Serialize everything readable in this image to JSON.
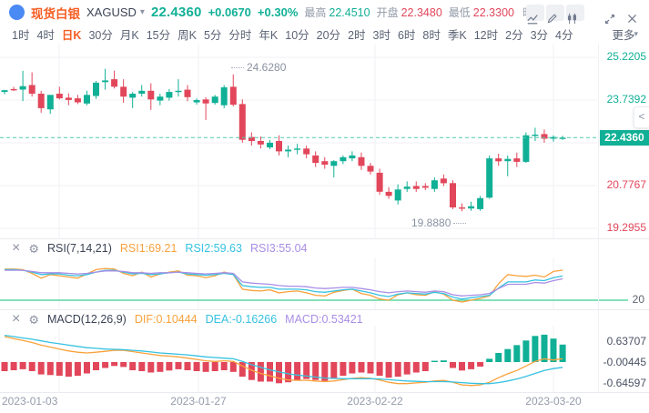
{
  "header": {
    "symbol_name": "现货白银",
    "symbol_code": "XAGUSD",
    "price": "22.4360",
    "change": "+0.0670",
    "change_pct": "+0.30%",
    "stats": [
      {
        "label": "最高",
        "value": "22.4510",
        "dir": "up"
      },
      {
        "label": "开盘",
        "value": "22.3480",
        "dir": "down"
      },
      {
        "label": "最低",
        "value": "22.3300",
        "dir": "down"
      }
    ],
    "obscured_fragment": "昨 2 6"
  },
  "tabs": {
    "items": [
      "1时",
      "4时",
      "日K",
      "30分",
      "月K",
      "15分",
      "周K",
      "5分",
      "分时",
      "年K",
      "10分",
      "20分",
      "2时",
      "3时",
      "6时",
      "8时",
      "季K",
      "12时",
      "2分",
      "3分",
      "4分"
    ],
    "active": "日K",
    "more_label": "更多"
  },
  "icons": {
    "gear": "⚙",
    "close": "×",
    "caret": "▾"
  },
  "main_chart": {
    "high_label": "24.6280",
    "low_label": "19.8880",
    "price_badge": "22.4360",
    "collapse_label": "<"
  },
  "rsi": {
    "title": "RSI(7,14,21)",
    "value_labels": [
      "RSI1:69.21",
      "RSI2:59.63",
      "RSI3:55.04"
    ],
    "axis_label": "20"
  },
  "macd": {
    "title": "MACD(12,26,9)",
    "value_labels": [
      "DIF:0.10444",
      "DEA:-0.16266",
      "MACD:0.53421"
    ]
  },
  "colors": {
    "up": "#10b096",
    "down": "#e2465a",
    "accent_orange": "#f65e23",
    "rsi1": "#f9a23c",
    "rsi2": "#36c2e0",
    "rsi3": "#a98ee6",
    "baseline_green": "#3bcf92",
    "dif": "#f9a23c",
    "dea": "#36c2e0",
    "grid": "#f1f2f6",
    "dashed_line": "#56c9ae",
    "text_gray": "#9299a8"
  },
  "chart_data": [
    {
      "type": "candlestick",
      "title": "现货白银 XAGUSD 日K",
      "x_ticks": [
        "2023-01-03",
        "2023-01-27",
        "2023-02-22",
        "2023-03-20"
      ],
      "y_ticks": [
        25.2205,
        23.7392,
        22.258,
        20.7767,
        19.2955
      ],
      "ylim": [
        19.0,
        25.5
      ],
      "current_price": 22.436,
      "high_annotation": 24.628,
      "low_annotation": 19.888,
      "candles_ohlc": [
        [
          24.02,
          24.1,
          23.94,
          24.08
        ],
        [
          24.12,
          24.2,
          24.05,
          24.08
        ],
        [
          24.1,
          24.75,
          23.7,
          24.22
        ],
        [
          24.26,
          24.7,
          23.86,
          23.96
        ],
        [
          23.96,
          24.06,
          23.3,
          23.46
        ],
        [
          23.42,
          23.72,
          23.26,
          23.92
        ],
        [
          23.96,
          24.2,
          23.76,
          23.8
        ],
        [
          23.82,
          23.97,
          23.56,
          23.74
        ],
        [
          23.8,
          23.92,
          23.6,
          23.66
        ],
        [
          23.62,
          24.06,
          23.56,
          23.92
        ],
        [
          23.88,
          24.4,
          23.78,
          24.34
        ],
        [
          24.36,
          24.82,
          24.1,
          24.42
        ],
        [
          24.46,
          24.76,
          24.14,
          24.2
        ],
        [
          24.2,
          24.46,
          23.64,
          23.86
        ],
        [
          23.82,
          24.02,
          23.46,
          23.96
        ],
        [
          23.96,
          24.26,
          23.86,
          24.06
        ],
        [
          24.06,
          24.32,
          23.4,
          23.76
        ],
        [
          23.72,
          23.96,
          23.56,
          23.86
        ],
        [
          23.82,
          24.12,
          23.72,
          24.02
        ],
        [
          24.02,
          24.46,
          23.86,
          24.06
        ],
        [
          24.1,
          24.26,
          23.7,
          23.84
        ],
        [
          23.66,
          23.8,
          23.58,
          23.74
        ],
        [
          23.76,
          23.84,
          23.05,
          23.62
        ],
        [
          23.64,
          23.92,
          23.58,
          23.86
        ],
        [
          23.56,
          24.26,
          23.46,
          24.18
        ],
        [
          24.2,
          24.628,
          23.52,
          23.58
        ],
        [
          23.6,
          23.76,
          22.26,
          22.36
        ],
        [
          22.46,
          22.62,
          22.16,
          22.32
        ],
        [
          22.32,
          22.48,
          22.06,
          22.2
        ],
        [
          22.1,
          22.36,
          22.04,
          22.26
        ],
        [
          22.32,
          22.52,
          21.82,
          21.96
        ],
        [
          21.96,
          22.16,
          21.76,
          22.02
        ],
        [
          22.02,
          22.22,
          21.86,
          22.06
        ],
        [
          22.06,
          22.16,
          21.72,
          21.86
        ],
        [
          21.82,
          21.96,
          21.42,
          21.56
        ],
        [
          21.62,
          21.76,
          21.36,
          21.5
        ],
        [
          21.46,
          21.66,
          21.06,
          21.62
        ],
        [
          21.62,
          21.82,
          21.52,
          21.76
        ],
        [
          21.72,
          21.96,
          21.62,
          21.82
        ],
        [
          21.76,
          21.92,
          21.32,
          21.46
        ],
        [
          21.46,
          21.56,
          21.16,
          21.26
        ],
        [
          21.22,
          21.36,
          20.46,
          20.56
        ],
        [
          20.56,
          20.72,
          20.32,
          20.42
        ],
        [
          20.26,
          20.82,
          20.12,
          20.64
        ],
        [
          20.66,
          20.92,
          20.56,
          20.74
        ],
        [
          20.76,
          20.92,
          20.56,
          20.66
        ],
        [
          20.76,
          20.86,
          20.62,
          20.7
        ],
        [
          20.66,
          21.06,
          20.56,
          20.96
        ],
        [
          21.02,
          21.16,
          20.76,
          20.86
        ],
        [
          20.86,
          20.96,
          19.96,
          20.02
        ],
        [
          20.02,
          20.16,
          19.888,
          19.98
        ],
        [
          19.98,
          20.22,
          19.9,
          20.06
        ],
        [
          19.96,
          20.42,
          19.9,
          20.34
        ],
        [
          20.36,
          21.82,
          20.32,
          21.72
        ],
        [
          21.72,
          21.88,
          21.46,
          21.62
        ],
        [
          21.62,
          21.82,
          21.1,
          21.7
        ],
        [
          21.72,
          21.92,
          21.42,
          21.6
        ],
        [
          21.6,
          22.62,
          21.56,
          22.52
        ],
        [
          22.52,
          22.78,
          22.32,
          22.54
        ],
        [
          22.56,
          22.72,
          22.26,
          22.4
        ],
        [
          22.4,
          22.52,
          22.3,
          22.46
        ],
        [
          22.42,
          22.5,
          22.36,
          22.436
        ]
      ]
    },
    {
      "type": "line",
      "title": "RSI(7,14,21)",
      "baseline": 20,
      "range": [
        0,
        90
      ],
      "series": [
        {
          "name": "RSI1",
          "current": 69.21,
          "values": [
            71,
            71,
            70,
            64,
            56,
            62,
            60,
            58,
            56,
            63,
            70,
            72,
            71,
            64,
            60,
            66,
            58,
            63,
            66,
            68,
            61,
            60,
            57,
            60,
            66,
            62,
            38,
            36,
            35,
            37,
            32,
            34,
            35,
            32,
            28,
            27,
            33,
            36,
            38,
            31,
            28,
            22,
            20,
            29,
            32,
            29,
            28,
            34,
            30,
            20,
            17,
            20,
            23,
            27,
            47,
            62,
            60,
            59,
            61,
            58,
            67,
            69.21
          ]
        },
        {
          "name": "RSI2",
          "current": 59.63,
          "values": [
            70,
            70,
            69,
            66,
            62,
            63,
            63,
            61,
            60,
            62,
            66,
            69,
            69,
            66,
            63,
            64,
            62,
            63,
            65,
            66,
            63,
            62,
            61,
            62,
            64,
            62,
            44,
            42,
            41,
            41,
            38,
            38,
            38,
            37,
            34,
            33,
            35,
            37,
            38,
            35,
            32,
            28,
            26,
            30,
            32,
            31,
            30,
            33,
            31,
            25,
            22,
            24,
            26,
            28,
            40,
            50,
            50,
            50,
            53,
            52,
            57,
            59.63
          ]
        },
        {
          "name": "RSI3",
          "current": 55.04,
          "values": [
            69,
            69,
            69,
            67,
            65,
            65,
            65,
            64,
            63,
            64,
            66,
            68,
            68,
            67,
            65,
            65,
            64,
            65,
            65,
            66,
            65,
            64,
            63,
            64,
            65,
            64,
            50,
            48,
            47,
            46,
            44,
            43,
            43,
            42,
            40,
            39,
            40,
            41,
            41,
            39,
            37,
            34,
            32,
            34,
            35,
            34,
            33,
            35,
            34,
            29,
            27,
            28,
            29,
            31,
            39,
            46,
            46,
            46,
            49,
            48,
            52,
            55.04
          ]
        }
      ]
    },
    {
      "type": "macd",
      "title": "MACD(12,26,9)",
      "y_ticks": [
        0.63707,
        -0.00445,
        -0.64597
      ],
      "dif": [
        0.78,
        0.72,
        0.66,
        0.6,
        0.52,
        0.46,
        0.4,
        0.34,
        0.3,
        0.28,
        0.3,
        0.33,
        0.36,
        0.36,
        0.32,
        0.28,
        0.24,
        0.2,
        0.18,
        0.16,
        0.12,
        0.08,
        0.04,
        0.02,
        0.04,
        0.02,
        -0.12,
        -0.25,
        -0.35,
        -0.42,
        -0.5,
        -0.55,
        -0.56,
        -0.56,
        -0.58,
        -0.6,
        -0.58,
        -0.54,
        -0.5,
        -0.48,
        -0.5,
        -0.55,
        -0.62,
        -0.66,
        -0.66,
        -0.64,
        -0.62,
        -0.58,
        -0.56,
        -0.62,
        -0.7,
        -0.72,
        -0.7,
        -0.62,
        -0.48,
        -0.36,
        -0.26,
        -0.12,
        0.02,
        0.1,
        0.06,
        0.10444
      ],
      "dea": [
        0.82,
        0.78,
        0.74,
        0.7,
        0.65,
        0.6,
        0.56,
        0.52,
        0.48,
        0.44,
        0.42,
        0.4,
        0.39,
        0.38,
        0.36,
        0.34,
        0.31,
        0.28,
        0.26,
        0.24,
        0.22,
        0.19,
        0.16,
        0.14,
        0.12,
        0.1,
        0.02,
        -0.08,
        -0.16,
        -0.24,
        -0.3,
        -0.36,
        -0.4,
        -0.43,
        -0.46,
        -0.49,
        -0.5,
        -0.51,
        -0.51,
        -0.51,
        -0.51,
        -0.52,
        -0.54,
        -0.56,
        -0.58,
        -0.59,
        -0.6,
        -0.6,
        -0.6,
        -0.61,
        -0.63,
        -0.65,
        -0.66,
        -0.66,
        -0.63,
        -0.58,
        -0.52,
        -0.44,
        -0.35,
        -0.26,
        -0.2,
        -0.16266
      ],
      "histogram": [
        -0.28,
        -0.25,
        -0.22,
        -0.28,
        -0.38,
        -0.4,
        -0.42,
        -0.45,
        -0.42,
        -0.35,
        -0.25,
        -0.18,
        -0.12,
        -0.15,
        -0.25,
        -0.28,
        -0.32,
        -0.3,
        -0.26,
        -0.22,
        -0.25,
        -0.28,
        -0.3,
        -0.28,
        -0.25,
        -0.3,
        -0.45,
        -0.55,
        -0.6,
        -0.6,
        -0.65,
        -0.62,
        -0.55,
        -0.52,
        -0.55,
        -0.58,
        -0.52,
        -0.42,
        -0.35,
        -0.32,
        -0.35,
        -0.42,
        -0.48,
        -0.45,
        -0.38,
        -0.32,
        -0.28,
        0.04,
        0.05,
        -0.18,
        -0.26,
        -0.22,
        -0.14,
        0.1,
        0.28,
        0.4,
        0.52,
        0.66,
        0.8,
        0.84,
        0.72,
        0.53421
      ]
    }
  ]
}
